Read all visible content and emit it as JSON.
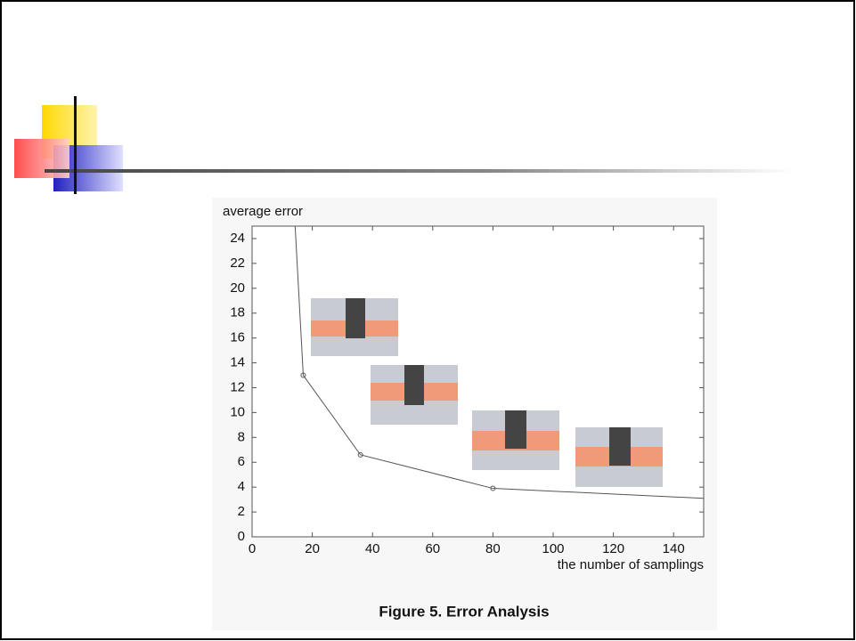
{
  "chart_data": {
    "type": "line",
    "y_label": "average error",
    "x_label": "the number of samplings",
    "caption": "Figure 5. Error Analysis",
    "x": [
      14.3,
      17,
      36,
      80,
      150
    ],
    "series": [
      {
        "color": "#555555",
        "values": [
          25,
          13,
          6.6,
          3.9,
          3.1
        ]
      }
    ],
    "xlim": [
      0,
      150
    ],
    "xticks": [
      0,
      20,
      40,
      60,
      80,
      100,
      120,
      140
    ],
    "ylim": [
      0,
      25
    ],
    "yticks": [
      0,
      2,
      4,
      6,
      8,
      10,
      12,
      14,
      16,
      18,
      20,
      22,
      24
    ]
  }
}
